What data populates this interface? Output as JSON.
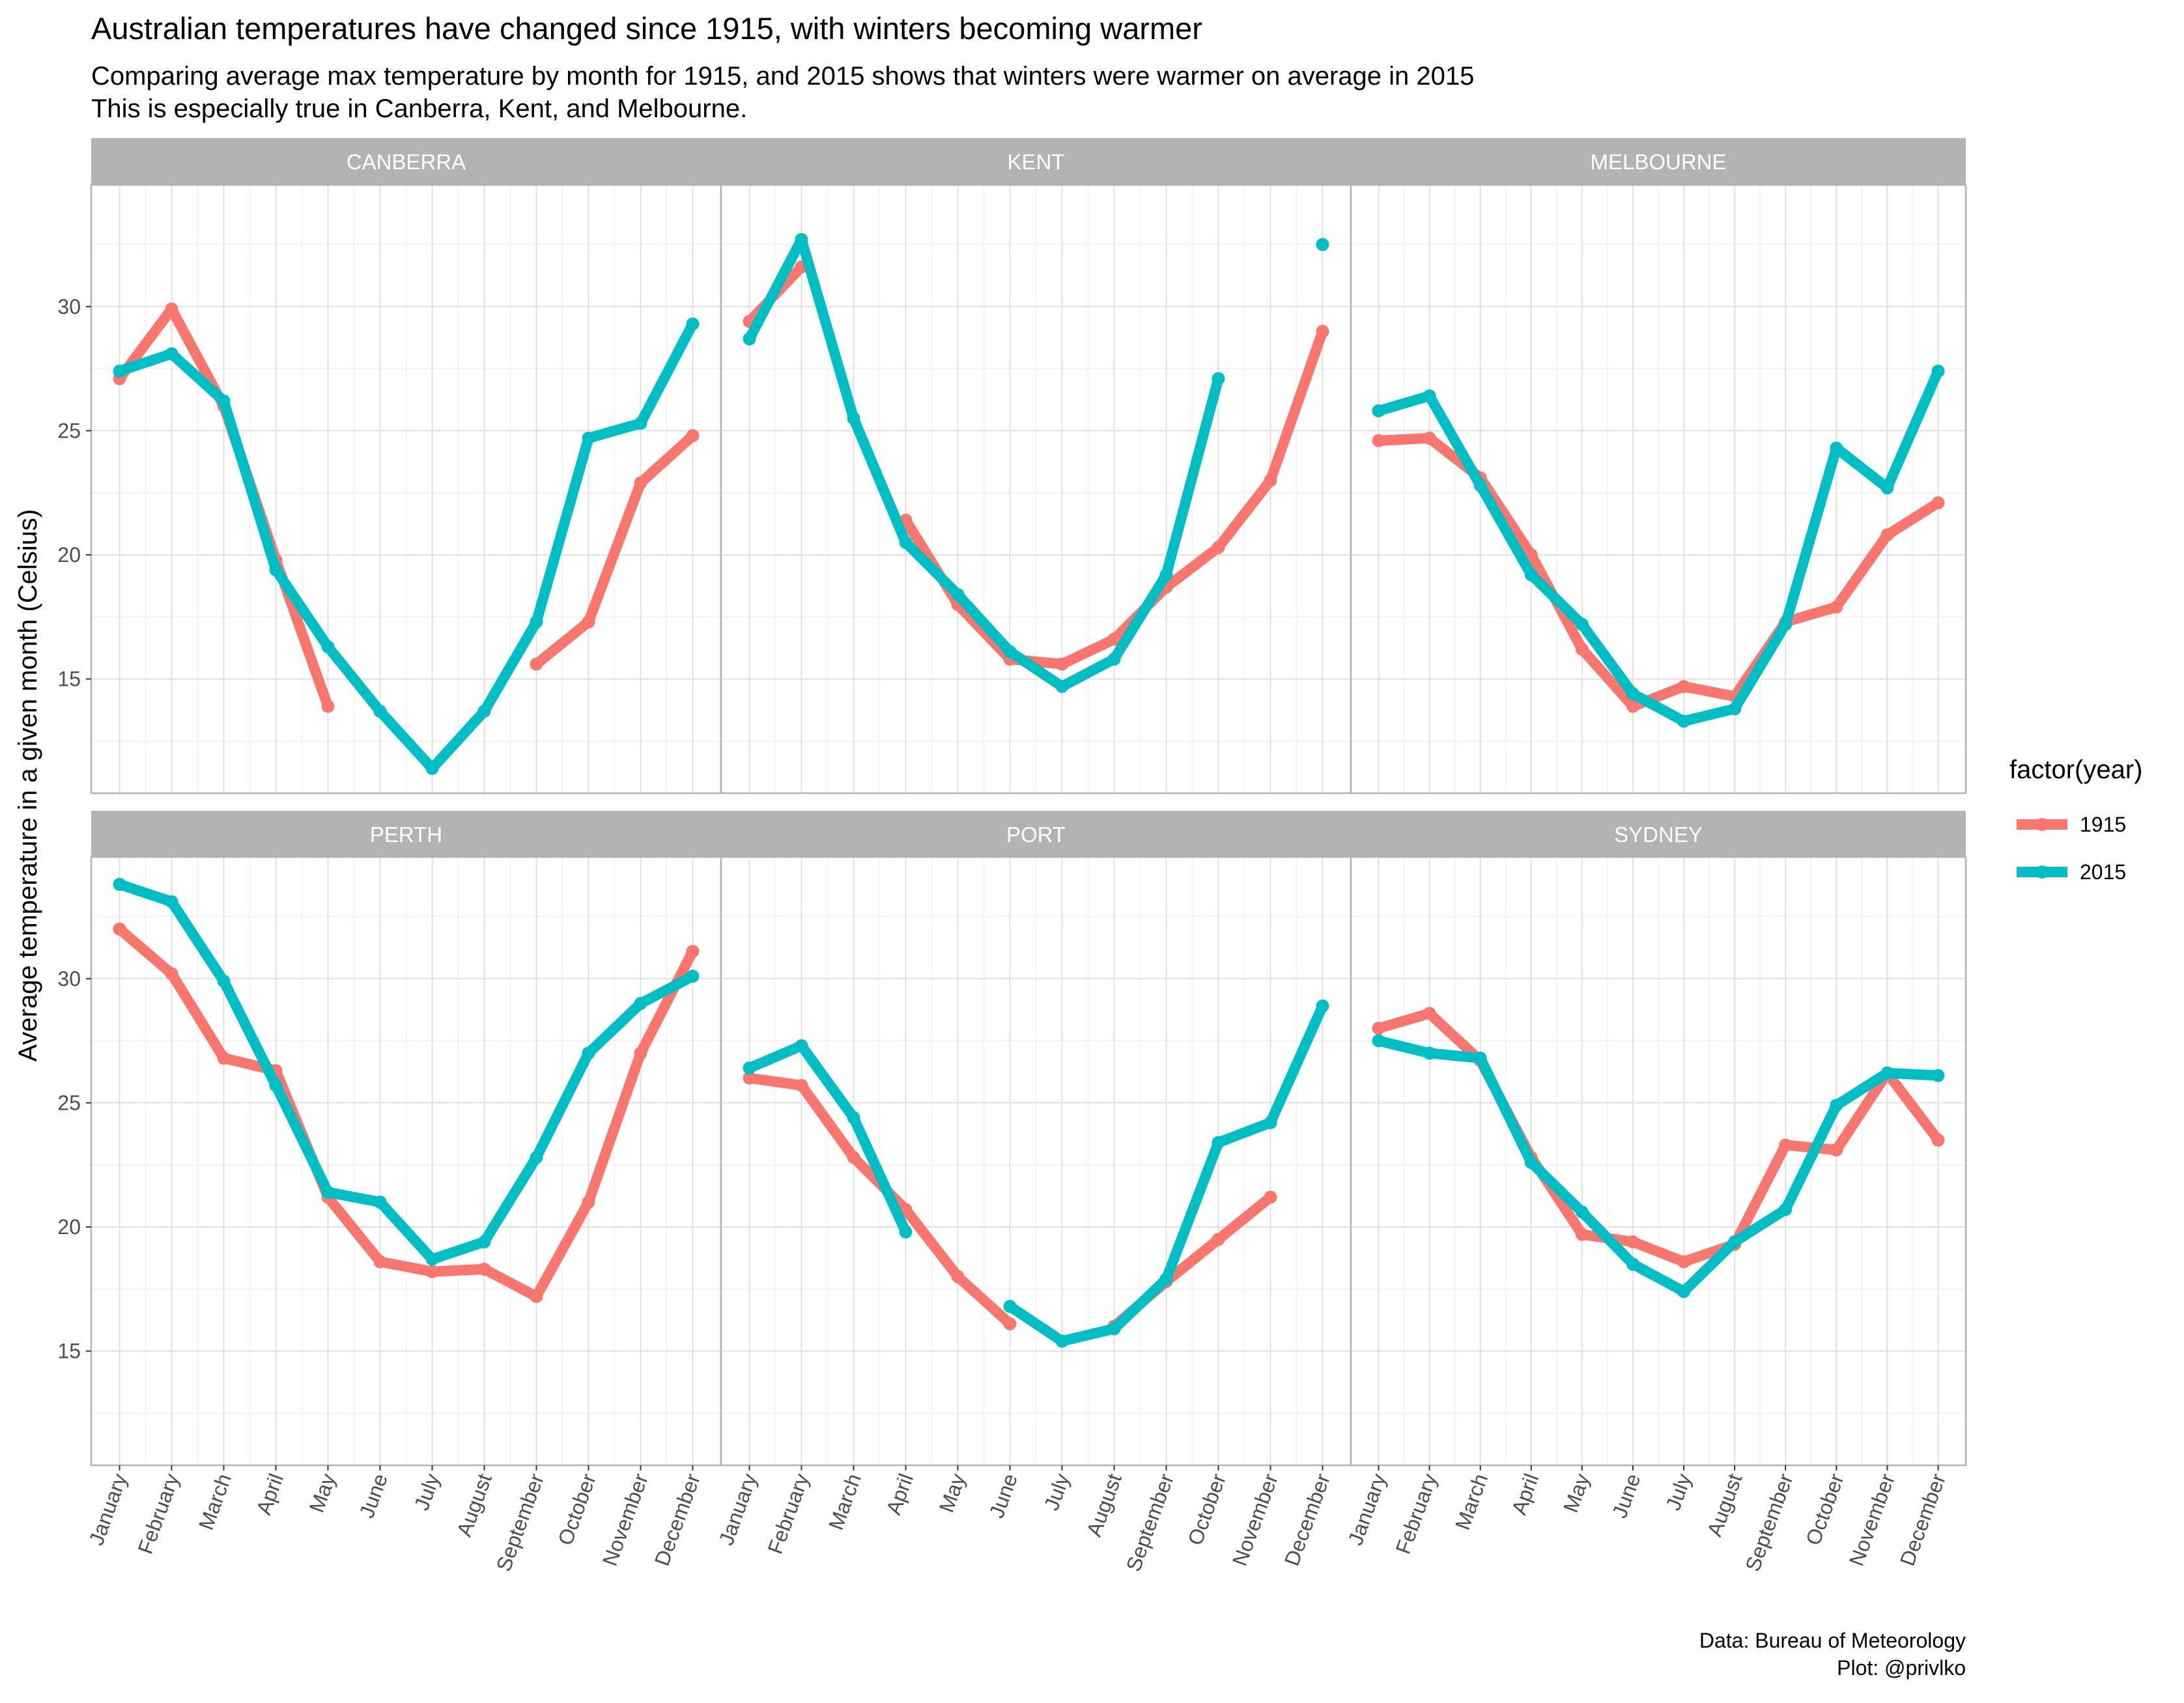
{
  "chart_data": {
    "type": "line",
    "title": "Australian temperatures have changed since 1915, with winters becoming warmer",
    "subtitle": [
      "Comparing average max temperature by month for 1915, and 2015 shows that winters were warmer on average in 2015",
      "This is especially true in Canberra, Kent, and Melbourne."
    ],
    "xlabel": "",
    "ylabel": "Average temperature in a given month (Celsius)",
    "categories": [
      "January",
      "February",
      "March",
      "April",
      "May",
      "June",
      "July",
      "August",
      "September",
      "October",
      "November",
      "December"
    ],
    "yticks": [
      15,
      20,
      25,
      30
    ],
    "ylim": [
      10.4,
      34.9
    ],
    "grid": true,
    "legend": {
      "title": "factor(year)",
      "position": "right",
      "entries": [
        {
          "label": "1915",
          "color": "#F8766D"
        },
        {
          "label": "2015",
          "color": "#00BFC4"
        }
      ]
    },
    "facets": [
      {
        "name": "CANBERRA",
        "series": [
          {
            "name": "1915",
            "values": [
              27.1,
              29.9,
              26.0,
              19.8,
              13.9,
              null,
              null,
              null,
              15.6,
              17.3,
              22.9,
              24.8
            ]
          },
          {
            "name": "2015",
            "values": [
              27.4,
              28.1,
              26.2,
              19.4,
              16.3,
              13.7,
              11.4,
              13.7,
              17.3,
              24.7,
              25.3,
              29.3
            ]
          }
        ]
      },
      {
        "name": "KENT",
        "series": [
          {
            "name": "1915",
            "values": [
              29.4,
              31.6,
              null,
              21.4,
              18.0,
              15.8,
              15.6,
              16.6,
              18.7,
              20.3,
              23.0,
              29.0
            ]
          },
          {
            "name": "2015",
            "values": [
              28.7,
              32.7,
              25.5,
              20.5,
              18.4,
              16.1,
              14.7,
              15.8,
              19.2,
              27.1,
              null,
              32.5
            ]
          }
        ]
      },
      {
        "name": "MELBOURNE",
        "series": [
          {
            "name": "1915",
            "values": [
              24.6,
              24.7,
              23.1,
              20.0,
              16.2,
              13.9,
              14.7,
              14.3,
              17.3,
              17.9,
              20.8,
              22.1
            ]
          },
          {
            "name": "2015",
            "values": [
              25.8,
              26.4,
              22.8,
              19.2,
              17.2,
              14.4,
              13.3,
              13.8,
              17.2,
              24.3,
              22.7,
              27.4
            ]
          }
        ]
      },
      {
        "name": "PERTH",
        "series": [
          {
            "name": "1915",
            "values": [
              32.0,
              30.2,
              26.8,
              26.3,
              21.2,
              18.6,
              18.2,
              18.3,
              17.2,
              21.0,
              27.0,
              31.1
            ]
          },
          {
            "name": "2015",
            "values": [
              33.8,
              33.1,
              29.9,
              25.7,
              21.4,
              21.0,
              18.7,
              19.4,
              22.8,
              27.0,
              29.0,
              30.1
            ]
          }
        ]
      },
      {
        "name": "PORT",
        "series": [
          {
            "name": "1915",
            "values": [
              26.0,
              25.7,
              22.8,
              20.7,
              18.0,
              16.1,
              null,
              16.0,
              17.8,
              19.5,
              21.2,
              null
            ]
          },
          {
            "name": "2015",
            "values": [
              26.4,
              27.3,
              24.4,
              19.8,
              null,
              16.8,
              15.4,
              15.9,
              17.9,
              23.4,
              24.2,
              28.9
            ]
          }
        ]
      },
      {
        "name": "SYDNEY",
        "series": [
          {
            "name": "1915",
            "values": [
              28.0,
              28.6,
              26.7,
              22.8,
              19.7,
              19.4,
              18.6,
              19.3,
              23.3,
              23.1,
              26.2,
              23.5
            ]
          },
          {
            "name": "2015",
            "values": [
              27.5,
              27.0,
              26.8,
              22.6,
              20.6,
              18.5,
              17.4,
              19.4,
              20.7,
              24.9,
              26.2,
              26.1
            ]
          }
        ]
      }
    ],
    "caption": [
      "Data: Bureau of Meteorology",
      "Plot: @privlko"
    ],
    "colors": {
      "strip_bg": "#B3B3B3",
      "strip_text": "#FFFFFF",
      "panel_border": "#B3B3B3",
      "grid_major": "#E0E0E0",
      "grid_minor": "#F0F0F0",
      "tick_text": "#4D4D4D"
    }
  }
}
